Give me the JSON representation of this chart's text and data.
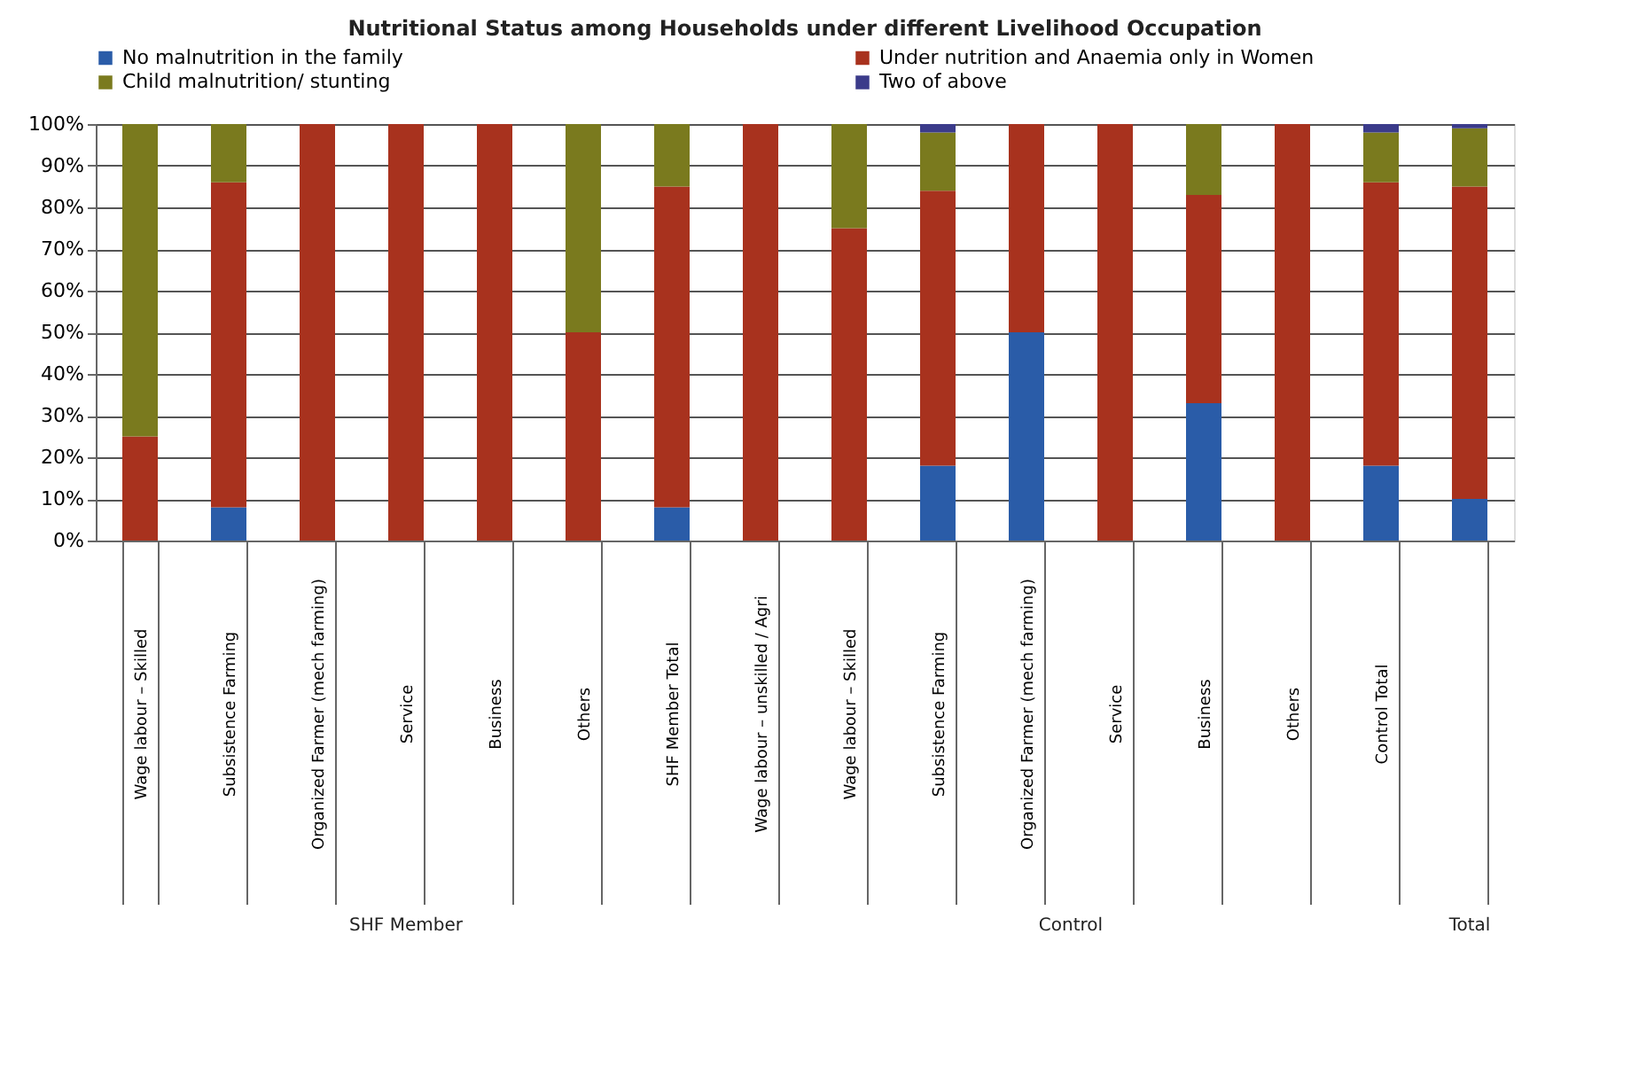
{
  "chart_data": {
    "type": "bar",
    "stacked": true,
    "title": "Nutritional Status among Households under different Livelihood Occupation",
    "categories": [
      "Wage labour – Skilled",
      "Subsistence Farming",
      "Organized Farmer (mech farming)",
      "Service",
      "Business",
      "Others",
      "SHF Member Total",
      "Wage labour – unskilled / Agri",
      "Wage labour – Skilled",
      "Subsistence Farming",
      "Organized Farmer (mech farming)",
      "Service",
      "Business",
      "Others",
      "Control Total",
      null
    ],
    "series": [
      {
        "name": "No malnutrition  in the family",
        "color": "#2a5ca8",
        "values": [
          0,
          8,
          0,
          0,
          0,
          0,
          8,
          0,
          0,
          18,
          50,
          0,
          33,
          0,
          18,
          10
        ]
      },
      {
        "name": "Under nutrition and Anaemia only in Women",
        "color": "#a8321e",
        "values": [
          25,
          78,
          100,
          100,
          100,
          50,
          77,
          100,
          75,
          66,
          50,
          100,
          50,
          100,
          68,
          75
        ]
      },
      {
        "name": "Child malnutrition/ stunting",
        "color": "#7a7a1e",
        "values": [
          75,
          14,
          0,
          0,
          0,
          50,
          15,
          0,
          25,
          14,
          0,
          0,
          17,
          0,
          12,
          14
        ]
      },
      {
        "name": "Two of above",
        "color": "#3b3b8a",
        "values": [
          0,
          0,
          0,
          0,
          0,
          0,
          0,
          0,
          0,
          2,
          0,
          0,
          0,
          0,
          2,
          1
        ]
      }
    ],
    "ylim": [
      0,
      100
    ],
    "yticks": [
      {
        "value": 0,
        "label": "0%"
      },
      {
        "value": 10,
        "label": "10%"
      },
      {
        "value": 20,
        "label": "20%"
      },
      {
        "value": 30,
        "label": "30%"
      },
      {
        "value": 40,
        "label": "40%"
      },
      {
        "value": 50,
        "label": "50%"
      },
      {
        "value": 60,
        "label": "60%"
      },
      {
        "value": 70,
        "label": "70%"
      },
      {
        "value": 80,
        "label": "80%"
      },
      {
        "value": 90,
        "label": "90%"
      },
      {
        "value": 100,
        "label": "100%"
      }
    ],
    "grid": "y",
    "legend": "top left",
    "annotations": [
      "SHF Member",
      "Control",
      "Total"
    ]
  }
}
